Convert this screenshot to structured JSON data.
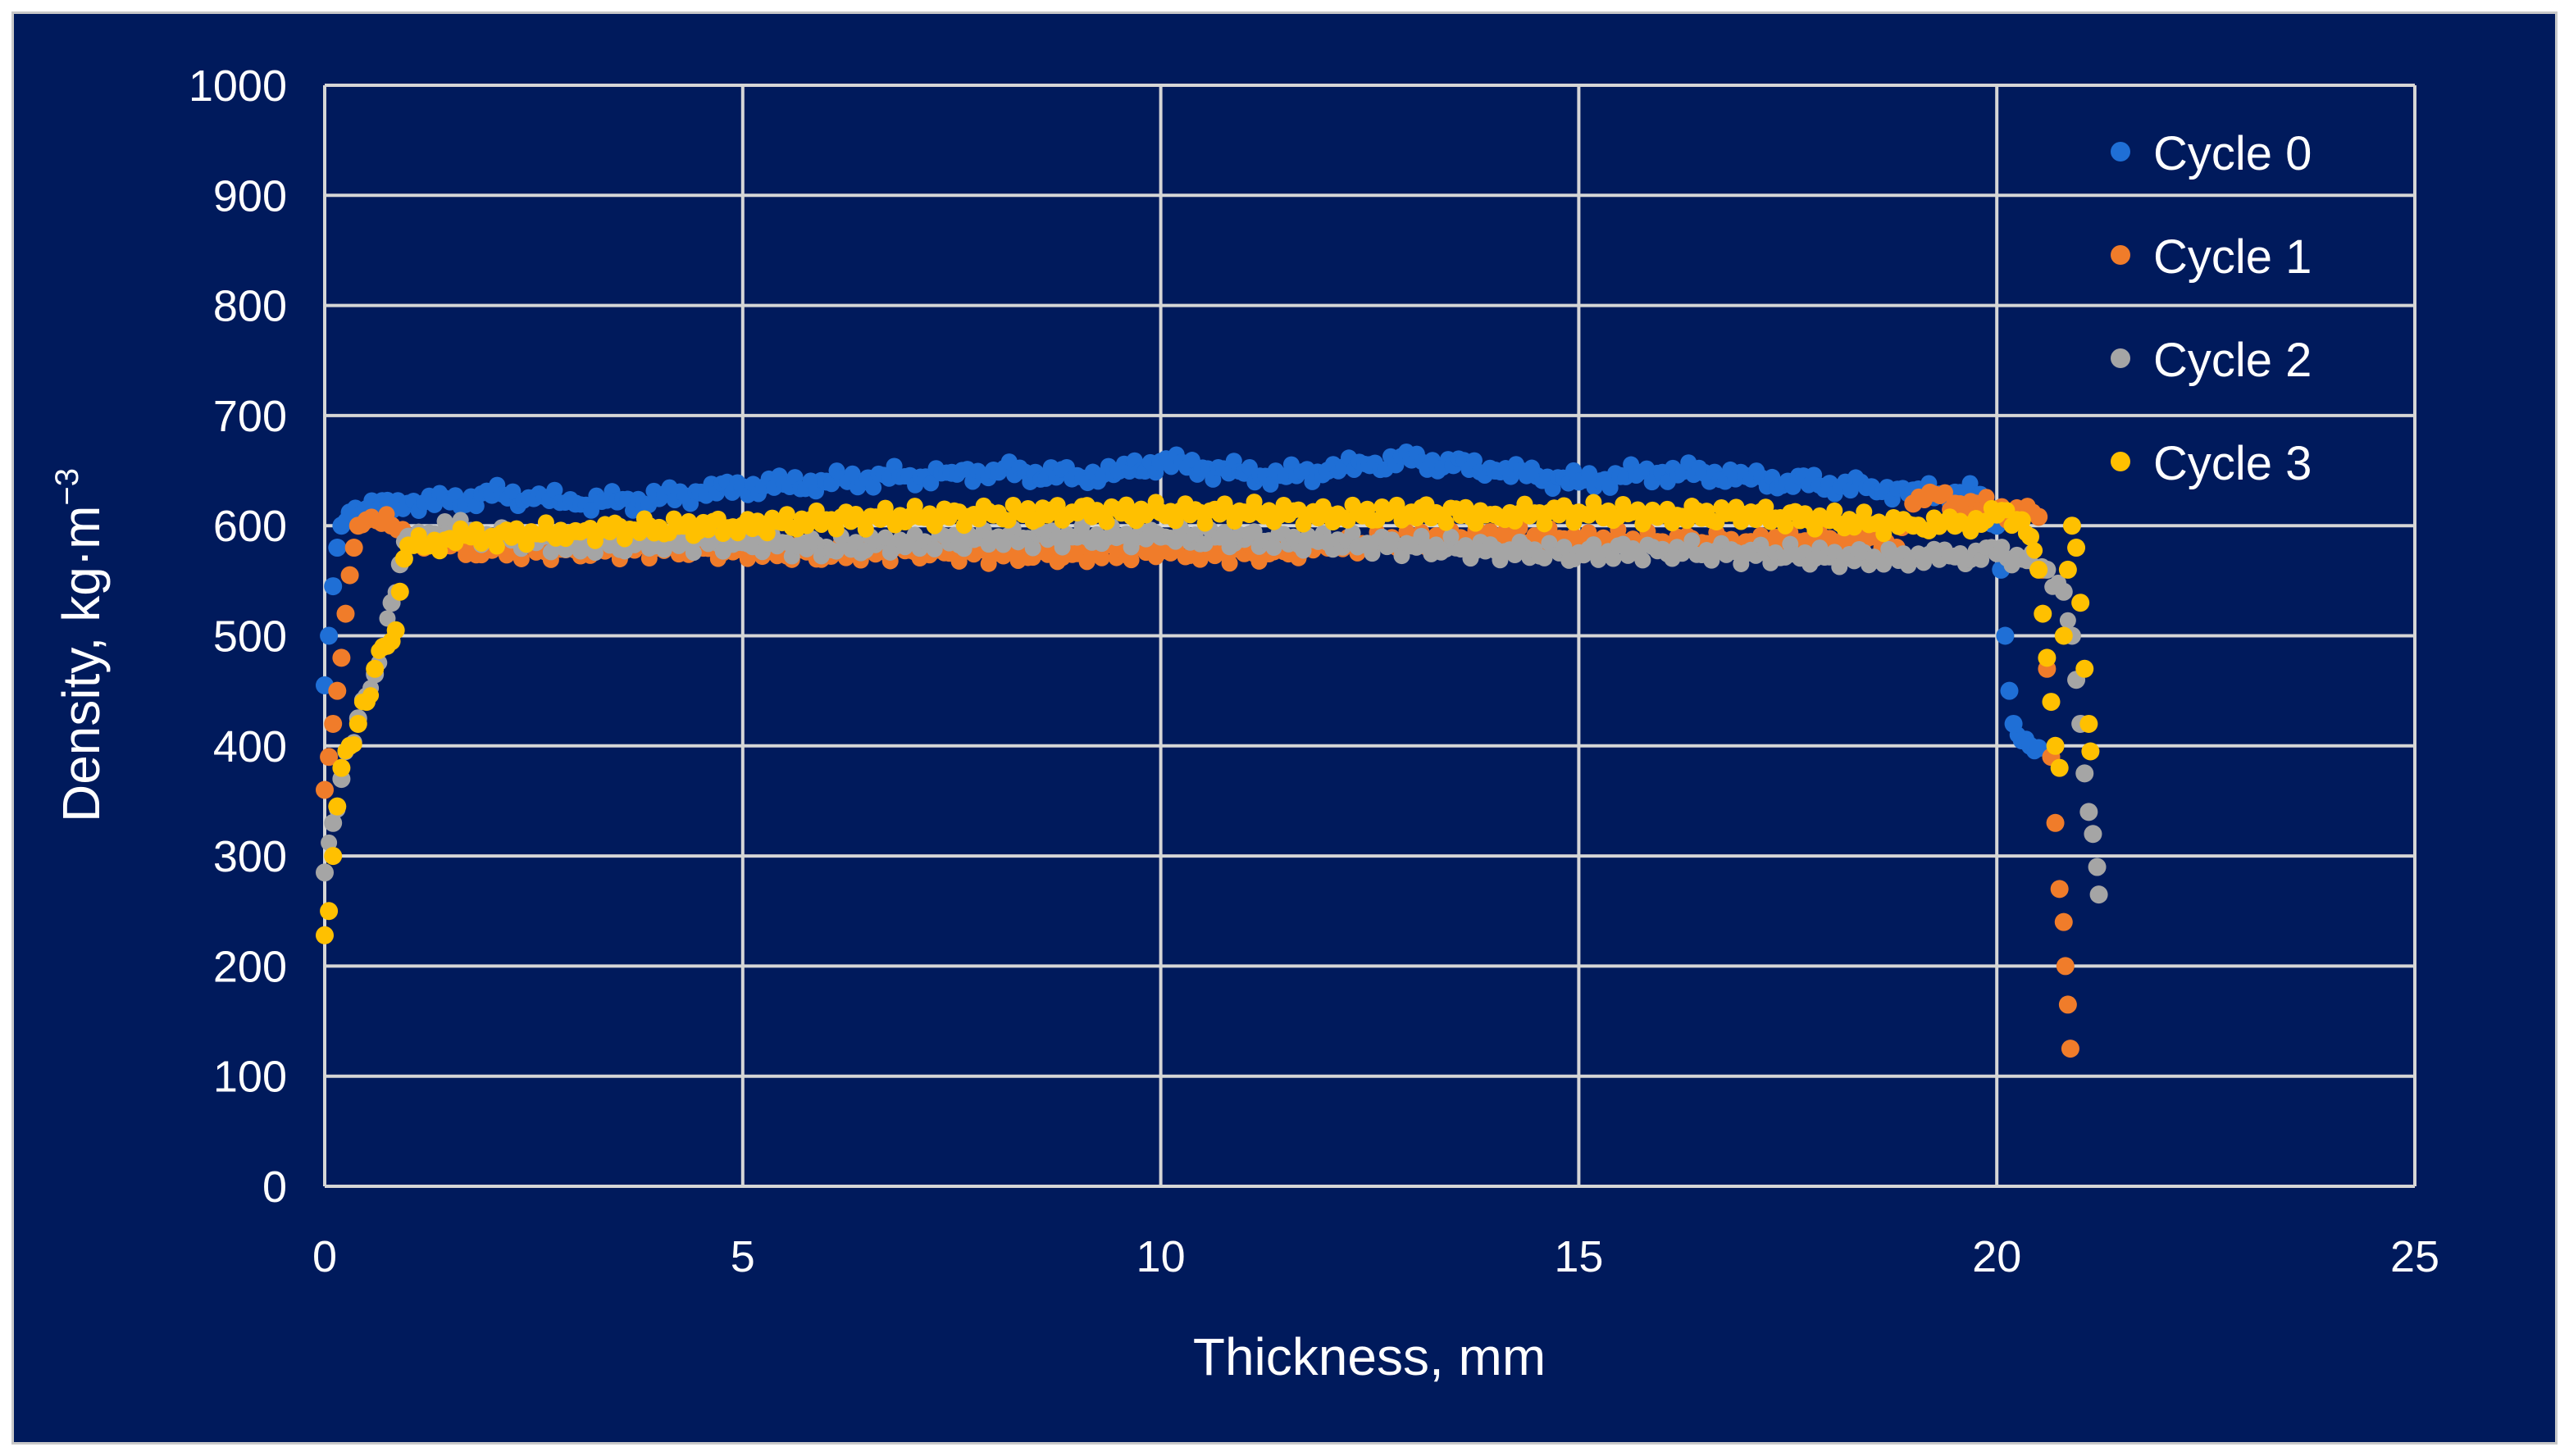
{
  "chart_data": {
    "type": "scatter",
    "title": "",
    "xlabel": "Thickness, mm",
    "ylabel_main": "Density, kg·m",
    "ylabel_sup": "−3",
    "xlim": [
      0,
      25
    ],
    "ylim": [
      0,
      1000
    ],
    "x_ticks": [
      0,
      5,
      10,
      15,
      20,
      25
    ],
    "y_ticks": [
      0,
      100,
      200,
      300,
      400,
      500,
      600,
      700,
      800,
      900,
      1000
    ],
    "grid": true,
    "legend_position": "top-right",
    "colors": {
      "background": "#001a5c",
      "grid": "#d6d6d6",
      "text": "#ffffff"
    },
    "series": [
      {
        "name": "Cycle 0",
        "color": "#1f6fd6",
        "points": [
          [
            0.0,
            455
          ],
          [
            0.05,
            500
          ],
          [
            0.1,
            545
          ],
          [
            0.15,
            580
          ],
          [
            0.2,
            600
          ],
          [
            0.3,
            612
          ],
          [
            0.5,
            615
          ],
          [
            1.0,
            620
          ],
          [
            1.5,
            622
          ],
          [
            2.0,
            628
          ],
          [
            2.5,
            625
          ],
          [
            3.0,
            620
          ],
          [
            3.5,
            622
          ],
          [
            4.0,
            625
          ],
          [
            4.5,
            630
          ],
          [
            5.0,
            635
          ],
          [
            5.5,
            638
          ],
          [
            6.0,
            640
          ],
          [
            6.5,
            643
          ],
          [
            7.0,
            645
          ],
          [
            7.5,
            648
          ],
          [
            8.0,
            650
          ],
          [
            8.5,
            648
          ],
          [
            9.0,
            645
          ],
          [
            9.5,
            650
          ],
          [
            10.0,
            658
          ],
          [
            10.5,
            652
          ],
          [
            11.0,
            648
          ],
          [
            11.5,
            645
          ],
          [
            12.0,
            650
          ],
          [
            12.5,
            655
          ],
          [
            13.0,
            660
          ],
          [
            13.5,
            655
          ],
          [
            14.0,
            650
          ],
          [
            14.5,
            645
          ],
          [
            15.0,
            640
          ],
          [
            15.5,
            645
          ],
          [
            16.0,
            648
          ],
          [
            16.5,
            648
          ],
          [
            17.0,
            645
          ],
          [
            17.5,
            640
          ],
          [
            18.0,
            638
          ],
          [
            18.5,
            635
          ],
          [
            19.0,
            632
          ],
          [
            19.5,
            630
          ],
          [
            19.8,
            628
          ],
          [
            20.0,
            600
          ],
          [
            20.05,
            560
          ],
          [
            20.1,
            500
          ],
          [
            20.15,
            450
          ],
          [
            20.2,
            420
          ],
          [
            20.3,
            405
          ],
          [
            20.4,
            400
          ],
          [
            20.5,
            398
          ]
        ]
      },
      {
        "name": "Cycle 1",
        "color": "#f07c2a",
        "points": [
          [
            0.0,
            360
          ],
          [
            0.05,
            390
          ],
          [
            0.1,
            420
          ],
          [
            0.15,
            450
          ],
          [
            0.2,
            480
          ],
          [
            0.25,
            520
          ],
          [
            0.3,
            555
          ],
          [
            0.35,
            580
          ],
          [
            0.4,
            600
          ],
          [
            0.5,
            605
          ],
          [
            0.8,
            600
          ],
          [
            1.0,
            590
          ],
          [
            1.5,
            582
          ],
          [
            2.0,
            578
          ],
          [
            3.0,
            578
          ],
          [
            4.0,
            580
          ],
          [
            5.0,
            578
          ],
          [
            6.0,
            575
          ],
          [
            7.0,
            578
          ],
          [
            8.0,
            575
          ],
          [
            9.0,
            575
          ],
          [
            10.0,
            577
          ],
          [
            11.0,
            575
          ],
          [
            12.0,
            580
          ],
          [
            13.0,
            588
          ],
          [
            14.0,
            590
          ],
          [
            15.0,
            588
          ],
          [
            16.0,
            585
          ],
          [
            17.0,
            585
          ],
          [
            18.0,
            588
          ],
          [
            18.5,
            590
          ],
          [
            18.8,
            580
          ],
          [
            19.0,
            620
          ],
          [
            19.2,
            630
          ],
          [
            19.5,
            620
          ],
          [
            20.0,
            615
          ],
          [
            20.3,
            612
          ],
          [
            20.5,
            608
          ],
          [
            20.55,
            560
          ],
          [
            20.6,
            470
          ],
          [
            20.65,
            390
          ],
          [
            20.7,
            330
          ],
          [
            20.75,
            270
          ],
          [
            20.8,
            240
          ],
          [
            20.82,
            200
          ],
          [
            20.85,
            165
          ],
          [
            20.88,
            125
          ]
        ]
      },
      {
        "name": "Cycle 2",
        "color": "#a5a5a5",
        "points": [
          [
            0.0,
            285
          ],
          [
            0.1,
            330
          ],
          [
            0.2,
            370
          ],
          [
            0.3,
            400
          ],
          [
            0.4,
            425
          ],
          [
            0.5,
            445
          ],
          [
            0.6,
            465
          ],
          [
            0.7,
            490
          ],
          [
            0.8,
            530
          ],
          [
            0.9,
            565
          ],
          [
            1.0,
            590
          ],
          [
            1.5,
            598
          ],
          [
            2.0,
            590
          ],
          [
            3.0,
            582
          ],
          [
            4.0,
            585
          ],
          [
            5.0,
            585
          ],
          [
            6.0,
            580
          ],
          [
            7.0,
            585
          ],
          [
            8.0,
            588
          ],
          [
            9.0,
            590
          ],
          [
            10.0,
            590
          ],
          [
            11.0,
            588
          ],
          [
            12.0,
            585
          ],
          [
            13.0,
            582
          ],
          [
            14.0,
            578
          ],
          [
            15.0,
            575
          ],
          [
            16.0,
            578
          ],
          [
            17.0,
            575
          ],
          [
            18.0,
            572
          ],
          [
            19.0,
            570
          ],
          [
            19.5,
            572
          ],
          [
            20.0,
            575
          ],
          [
            20.3,
            570
          ],
          [
            20.6,
            560
          ],
          [
            20.8,
            540
          ],
          [
            20.9,
            500
          ],
          [
            20.95,
            460
          ],
          [
            21.0,
            420
          ],
          [
            21.05,
            375
          ],
          [
            21.1,
            340
          ],
          [
            21.15,
            320
          ],
          [
            21.2,
            290
          ],
          [
            21.22,
            265
          ]
        ]
      },
      {
        "name": "Cycle 3",
        "color": "#ffc000",
        "points": [
          [
            0.0,
            228
          ],
          [
            0.05,
            250
          ],
          [
            0.1,
            300
          ],
          [
            0.15,
            345
          ],
          [
            0.2,
            380
          ],
          [
            0.3,
            400
          ],
          [
            0.4,
            420
          ],
          [
            0.5,
            440
          ],
          [
            0.6,
            470
          ],
          [
            0.7,
            490
          ],
          [
            0.8,
            495
          ],
          [
            0.85,
            505
          ],
          [
            0.9,
            540
          ],
          [
            0.95,
            570
          ],
          [
            1.0,
            582
          ],
          [
            1.5,
            588
          ],
          [
            2.0,
            590
          ],
          [
            3.0,
            595
          ],
          [
            4.0,
            598
          ],
          [
            5.0,
            600
          ],
          [
            6.0,
            605
          ],
          [
            7.0,
            608
          ],
          [
            8.0,
            610
          ],
          [
            9.0,
            612
          ],
          [
            10.0,
            612
          ],
          [
            11.0,
            612
          ],
          [
            12.0,
            610
          ],
          [
            13.0,
            612
          ],
          [
            14.0,
            610
          ],
          [
            15.0,
            612
          ],
          [
            16.0,
            610
          ],
          [
            17.0,
            610
          ],
          [
            18.0,
            605
          ],
          [
            19.0,
            600
          ],
          [
            19.5,
            600
          ],
          [
            20.0,
            610
          ],
          [
            20.3,
            605
          ],
          [
            20.4,
            590
          ],
          [
            20.5,
            560
          ],
          [
            20.55,
            520
          ],
          [
            20.6,
            480
          ],
          [
            20.65,
            440
          ],
          [
            20.7,
            400
          ],
          [
            20.75,
            380
          ],
          [
            20.8,
            500
          ],
          [
            20.85,
            560
          ],
          [
            20.9,
            600
          ],
          [
            20.95,
            580
          ],
          [
            21.0,
            530
          ],
          [
            21.05,
            470
          ],
          [
            21.1,
            420
          ],
          [
            21.12,
            395
          ]
        ]
      }
    ]
  }
}
